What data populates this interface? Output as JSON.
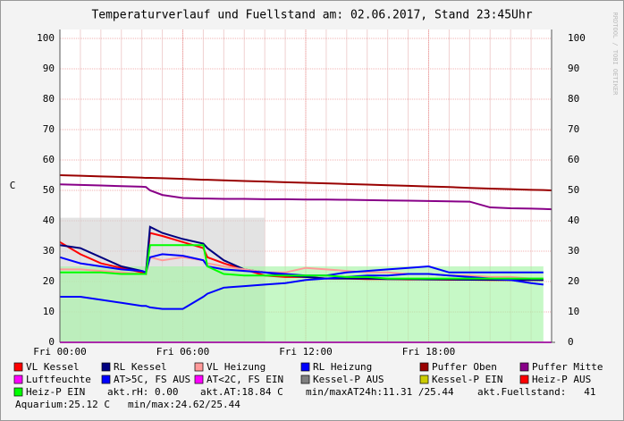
{
  "chart_data": {
    "type": "line",
    "title": "Temperaturverlauf und Fuellstand am: 02.06.2017, Stand 23:45Uhr",
    "y_label": "C",
    "watermark": "RRDTOOL / TOBI OETIKER",
    "grid": true,
    "xlim": [
      0,
      24
    ],
    "xticks": [
      {
        "value": 0,
        "label": "Fri 00:00"
      },
      {
        "value": 6,
        "label": "Fri 06:00"
      },
      {
        "value": 12,
        "label": "Fri 12:00"
      },
      {
        "value": 18,
        "label": "Fri 18:00"
      }
    ],
    "ylim": [
      0,
      100
    ],
    "yticks": [
      0,
      10,
      20,
      30,
      40,
      50,
      60,
      70,
      80,
      90,
      100
    ],
    "x": [
      0,
      1,
      2,
      3,
      4,
      4.2,
      4.4,
      5,
      6,
      7,
      7.2,
      8,
      9,
      10,
      11,
      12,
      13,
      14,
      15,
      16,
      17,
      18,
      19,
      20,
      21,
      22,
      23,
      23.6,
      24
    ],
    "series": [
      {
        "name": "VL Kessel",
        "color": "#ff0000",
        "style": "line",
        "values": [
          33,
          29,
          26,
          24.5,
          23,
          22.5,
          36,
          35,
          33,
          31,
          28,
          26,
          24,
          22,
          21.5,
          21.5,
          21,
          21,
          20.8,
          20.8,
          20.7,
          20.7,
          20.6,
          20.6,
          20.5,
          20.5,
          20.5,
          20.5,
          null
        ]
      },
      {
        "name": "RL Kessel",
        "color": "#000080",
        "style": "line",
        "values": [
          32,
          31,
          28,
          25,
          23.5,
          23,
          38,
          36,
          34,
          32.5,
          31,
          27,
          24,
          23,
          22,
          21.5,
          21,
          21,
          21,
          20.8,
          20.8,
          20.7,
          20.7,
          20.6,
          20.6,
          20.5,
          20.5,
          20.5,
          null
        ]
      },
      {
        "name": "VL Heizung",
        "color": "#ff9999",
        "style": "line",
        "values": [
          24,
          24,
          23.5,
          23,
          22.5,
          22.5,
          28,
          27,
          28,
          27,
          26,
          25,
          24,
          23,
          23,
          24.5,
          24,
          23.5,
          23,
          23,
          22.5,
          22.5,
          22,
          22,
          21.5,
          21.5,
          21,
          21,
          null
        ]
      },
      {
        "name": "RL Heizung",
        "color": "#0000ff",
        "style": "line",
        "values": [
          28,
          26,
          25,
          24,
          23.5,
          23,
          28,
          29,
          28.5,
          27,
          25,
          24,
          23.5,
          23,
          22.5,
          22,
          22,
          23,
          23.5,
          24,
          24.5,
          25,
          23,
          23,
          23,
          23,
          23,
          23,
          null
        ]
      },
      {
        "name": "Puffer Oben",
        "color": "#990000",
        "style": "line",
        "values": [
          55,
          54.8,
          54.6,
          54.4,
          54.2,
          54.1,
          54.1,
          54,
          53.8,
          53.5,
          53.5,
          53.3,
          53.1,
          52.9,
          52.7,
          52.5,
          52.3,
          52.1,
          51.9,
          51.7,
          51.5,
          51.3,
          51.1,
          50.8,
          50.6,
          50.4,
          50.2,
          50.1,
          50
        ]
      },
      {
        "name": "Puffer Mitte",
        "color": "#880088",
        "style": "line",
        "values": [
          52,
          51.8,
          51.6,
          51.4,
          51.2,
          51.1,
          50,
          48.5,
          47.5,
          47.3,
          47.3,
          47.2,
          47.2,
          47.1,
          47.1,
          47,
          47,
          46.9,
          46.8,
          46.7,
          46.6,
          46.5,
          46.4,
          46.3,
          44.4,
          44.1,
          44,
          43.9,
          43.8
        ]
      },
      {
        "name": "Luftfeuchte",
        "color": "#ff00ff",
        "style": "line",
        "values": [
          0,
          0,
          0,
          0,
          0,
          0,
          0,
          0,
          0,
          0,
          0,
          0,
          0,
          0,
          0,
          0,
          0,
          0,
          0,
          0,
          0,
          0,
          0,
          0,
          0,
          0,
          0,
          0,
          0
        ]
      },
      {
        "name": "AT>5C, FS AUS",
        "color": "#0000ff",
        "style": "line",
        "values": [
          15,
          15,
          14,
          13,
          12,
          12,
          11.5,
          11,
          11,
          15,
          16,
          18,
          18.5,
          19,
          19.5,
          20.5,
          21,
          21.5,
          22,
          22,
          22.5,
          22.5,
          22,
          21.5,
          21,
          20.5,
          19.5,
          19,
          null
        ]
      },
      {
        "name": "AT<2C, FS EIN",
        "color": "#ff00ff",
        "style": "none"
      },
      {
        "name": "Kessel-P AUS",
        "color": "#808080",
        "style": "area",
        "area_color": "#d4d4d4",
        "values": [
          41,
          41,
          41,
          41,
          41,
          41,
          41,
          41,
          41,
          41,
          41,
          41,
          41,
          41,
          null,
          null,
          null,
          null,
          null,
          null,
          null,
          null,
          null,
          null,
          null,
          null,
          null,
          null,
          null
        ]
      },
      {
        "name": "Kessel-P EIN",
        "color": "#cccc00",
        "style": "none"
      },
      {
        "name": "Heiz-P AUS",
        "color": "#ff0000",
        "style": "none"
      },
      {
        "name": "Heiz-P EIN",
        "color": "#00ff00",
        "style": "line",
        "area_color": "#a8f5a8",
        "area_values": [
          25,
          25,
          25,
          25,
          25,
          25,
          25,
          25,
          25,
          25,
          25,
          25,
          25,
          25,
          25,
          25,
          25,
          25,
          25,
          25,
          25,
          25,
          25,
          25,
          25,
          25,
          25,
          25,
          null
        ],
        "values": [
          23,
          23,
          23,
          22.5,
          22.5,
          22.5,
          32,
          32,
          32,
          32,
          25,
          22.5,
          22,
          22,
          22,
          22,
          22,
          21.5,
          21.5,
          21,
          21,
          21,
          21,
          21,
          21,
          21,
          21,
          21,
          null
        ]
      }
    ],
    "notes": [
      "akt.rH: 0.00",
      "akt.AT:18.84 C",
      "min/maxAT24h:11.31 /25.44",
      "akt.Fuellstand:   41",
      "Aquarium:25.12 C",
      "min/max:24.62/25.44"
    ]
  }
}
